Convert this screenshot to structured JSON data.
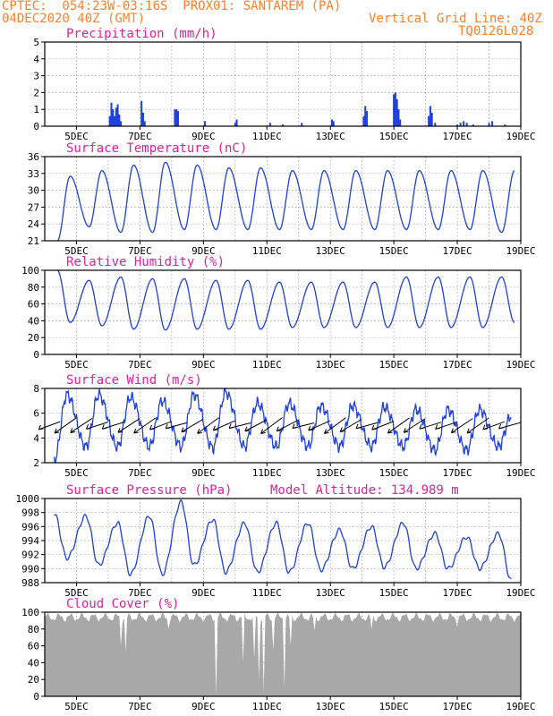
{
  "header": {
    "line1": "CPTEC:  054:23W-03:16S  PROX01: SANTAREM (PA)",
    "line2": "04DEC2020 40Z (GMT)",
    "grid_note": "Vertical Grid Line: 40Z",
    "code": "TQ0126L028"
  },
  "colors": {
    "header": "#ff7f27",
    "title": "#e0209a",
    "series": "#1f3fe0",
    "cloud": "#a8a8a8",
    "arrow": "#000000"
  },
  "chart_data": [
    {
      "type": "bar",
      "title": "Precipitation (mm/h)",
      "x_tick_labels": [
        "5DEC",
        "7DEC",
        "9DEC",
        "11DEC",
        "13DEC",
        "15DEC",
        "17DEC",
        "19DEC"
      ],
      "x_range_days": [
        4,
        19
      ],
      "ylim": [
        0,
        5
      ],
      "y_ticks": [
        0,
        1,
        2,
        3,
        4,
        5
      ],
      "grid": true,
      "bars": [
        [
          6.05,
          0.6
        ],
        [
          6.1,
          1.4
        ],
        [
          6.15,
          1.0
        ],
        [
          6.2,
          0.6
        ],
        [
          6.25,
          1.1
        ],
        [
          6.3,
          1.3
        ],
        [
          6.35,
          0.7
        ],
        [
          6.4,
          0.3
        ],
        [
          7.05,
          1.5
        ],
        [
          7.1,
          0.8
        ],
        [
          7.15,
          0.3
        ],
        [
          8.1,
          1.0
        ],
        [
          8.15,
          1.0
        ],
        [
          8.2,
          0.9
        ],
        [
          9.05,
          0.3
        ],
        [
          10.0,
          0.2
        ],
        [
          10.05,
          0.4
        ],
        [
          11.1,
          0.2
        ],
        [
          11.5,
          0.1
        ],
        [
          12.1,
          0.2
        ],
        [
          13.05,
          0.4
        ],
        [
          13.1,
          0.3
        ],
        [
          14.05,
          0.6
        ],
        [
          14.1,
          1.2
        ],
        [
          14.15,
          0.9
        ],
        [
          15.0,
          1.9
        ],
        [
          15.05,
          2.0
        ],
        [
          15.1,
          1.6
        ],
        [
          15.15,
          1.0
        ],
        [
          15.2,
          0.4
        ],
        [
          16.1,
          0.6
        ],
        [
          16.15,
          1.2
        ],
        [
          16.2,
          0.8
        ],
        [
          16.3,
          0.2
        ],
        [
          17.0,
          0.1
        ],
        [
          17.1,
          0.2
        ],
        [
          17.2,
          0.3
        ],
        [
          17.3,
          0.2
        ],
        [
          17.5,
          0.1
        ],
        [
          18.0,
          0.2
        ],
        [
          18.1,
          0.3
        ],
        [
          18.5,
          0.1
        ]
      ]
    },
    {
      "type": "line",
      "title": "Surface Temperature (nC)",
      "x_tick_labels": [
        "5DEC",
        "7DEC",
        "9DEC",
        "11DEC",
        "13DEC",
        "15DEC",
        "17DEC",
        "19DEC"
      ],
      "x_range_days": [
        4,
        19
      ],
      "ylim": [
        21,
        36
      ],
      "y_ticks": [
        21,
        24,
        27,
        30,
        33,
        36
      ],
      "grid": true,
      "daily_min": [
        21.0,
        23.5,
        22.5,
        22.5,
        23.0,
        23.0,
        23.0,
        23.0,
        23.0,
        23.0,
        23.0,
        23.0,
        23.0,
        23.0,
        22.5
      ],
      "daily_max": [
        32.5,
        33.5,
        34.5,
        35.0,
        34.5,
        34.0,
        34.0,
        33.5,
        33.5,
        33.5,
        33.5,
        33.5,
        33.5,
        33.5,
        33.5
      ],
      "trough_time": 0.4,
      "peak_time": 0.8
    },
    {
      "type": "line",
      "title": "Relative Humidity (%)",
      "x_tick_labels": [
        "5DEC",
        "7DEC",
        "9DEC",
        "11DEC",
        "13DEC",
        "15DEC",
        "17DEC",
        "19DEC"
      ],
      "x_range_days": [
        4,
        19
      ],
      "ylim": [
        0,
        100
      ],
      "y_ticks": [
        0,
        20,
        40,
        60,
        80,
        100
      ],
      "grid": true,
      "daily_max": [
        100,
        88,
        92,
        90,
        90,
        88,
        88,
        86,
        86,
        86,
        86,
        92,
        92,
        92,
        92
      ],
      "daily_min": [
        38,
        34,
        30,
        29,
        30,
        30,
        30,
        32,
        32,
        32,
        32,
        32,
        32,
        32,
        38
      ],
      "peak_time": 0.4,
      "trough_time": 0.8
    },
    {
      "type": "line",
      "title": "Surface Wind (m/s)",
      "x_tick_labels": [
        "5DEC",
        "7DEC",
        "9DEC",
        "11DEC",
        "13DEC",
        "15DEC",
        "17DEC",
        "19DEC"
      ],
      "x_range_days": [
        4,
        19
      ],
      "ylim": [
        2,
        8
      ],
      "y_ticks": [
        2,
        4,
        6,
        8
      ],
      "grid": true,
      "daily_max": [
        7.5,
        7.5,
        7.3,
        7.0,
        7.5,
        7.7,
        6.8,
        6.8,
        6.6,
        6.6,
        6.5,
        6.3,
        6.3,
        6.3,
        5.8
      ],
      "daily_min": [
        2.2,
        3.3,
        3.3,
        3.3,
        3.3,
        3.2,
        3.3,
        3.3,
        3.3,
        3.3,
        3.3,
        3.3,
        3.0,
        3.0,
        3.3
      ],
      "vector_arrows_per_day": 2
    },
    {
      "type": "line",
      "title": "Surface Pressure (hPa)",
      "annotation": "Model Altitude: 134.989 m",
      "x_tick_labels": [
        "5DEC",
        "7DEC",
        "9DEC",
        "11DEC",
        "13DEC",
        "15DEC",
        "17DEC",
        "19DEC"
      ],
      "x_range_days": [
        4,
        19
      ],
      "ylim": [
        988,
        1000
      ],
      "y_ticks": [
        988,
        990,
        992,
        994,
        996,
        998,
        1000
      ],
      "grid": true,
      "daily_max": [
        997.8,
        997.5,
        996.5,
        997.5,
        999.5,
        997.0,
        996.5,
        996.5,
        996.5,
        995.5,
        996.0,
        996.5,
        995.0,
        994.5,
        995.0
      ],
      "daily_min": [
        991.5,
        990.5,
        989.2,
        989.2,
        990.5,
        989.5,
        989.5,
        989.5,
        989.8,
        990.0,
        990.2,
        990.0,
        990.0,
        990.0,
        988.3
      ]
    },
    {
      "type": "area",
      "title": "Cloud Cover (%)",
      "x_tick_labels": [
        "5DEC",
        "7DEC",
        "9DEC",
        "11DEC",
        "13DEC",
        "15DEC",
        "17DEC",
        "19DEC"
      ],
      "x_range_days": [
        4,
        19
      ],
      "ylim": [
        0,
        100
      ],
      "y_ticks": [
        0,
        20,
        40,
        60,
        80,
        100
      ],
      "grid": true,
      "baseline": 94,
      "dips": [
        [
          6.4,
          60
        ],
        [
          6.55,
          52
        ],
        [
          7.9,
          80
        ],
        [
          9.4,
          0
        ],
        [
          10.25,
          40
        ],
        [
          10.6,
          45
        ],
        [
          10.75,
          20
        ],
        [
          10.9,
          5
        ],
        [
          11.2,
          55
        ],
        [
          11.55,
          10
        ],
        [
          11.75,
          60
        ],
        [
          12.5,
          78
        ],
        [
          14.3,
          80
        ],
        [
          17.0,
          82
        ]
      ]
    }
  ]
}
